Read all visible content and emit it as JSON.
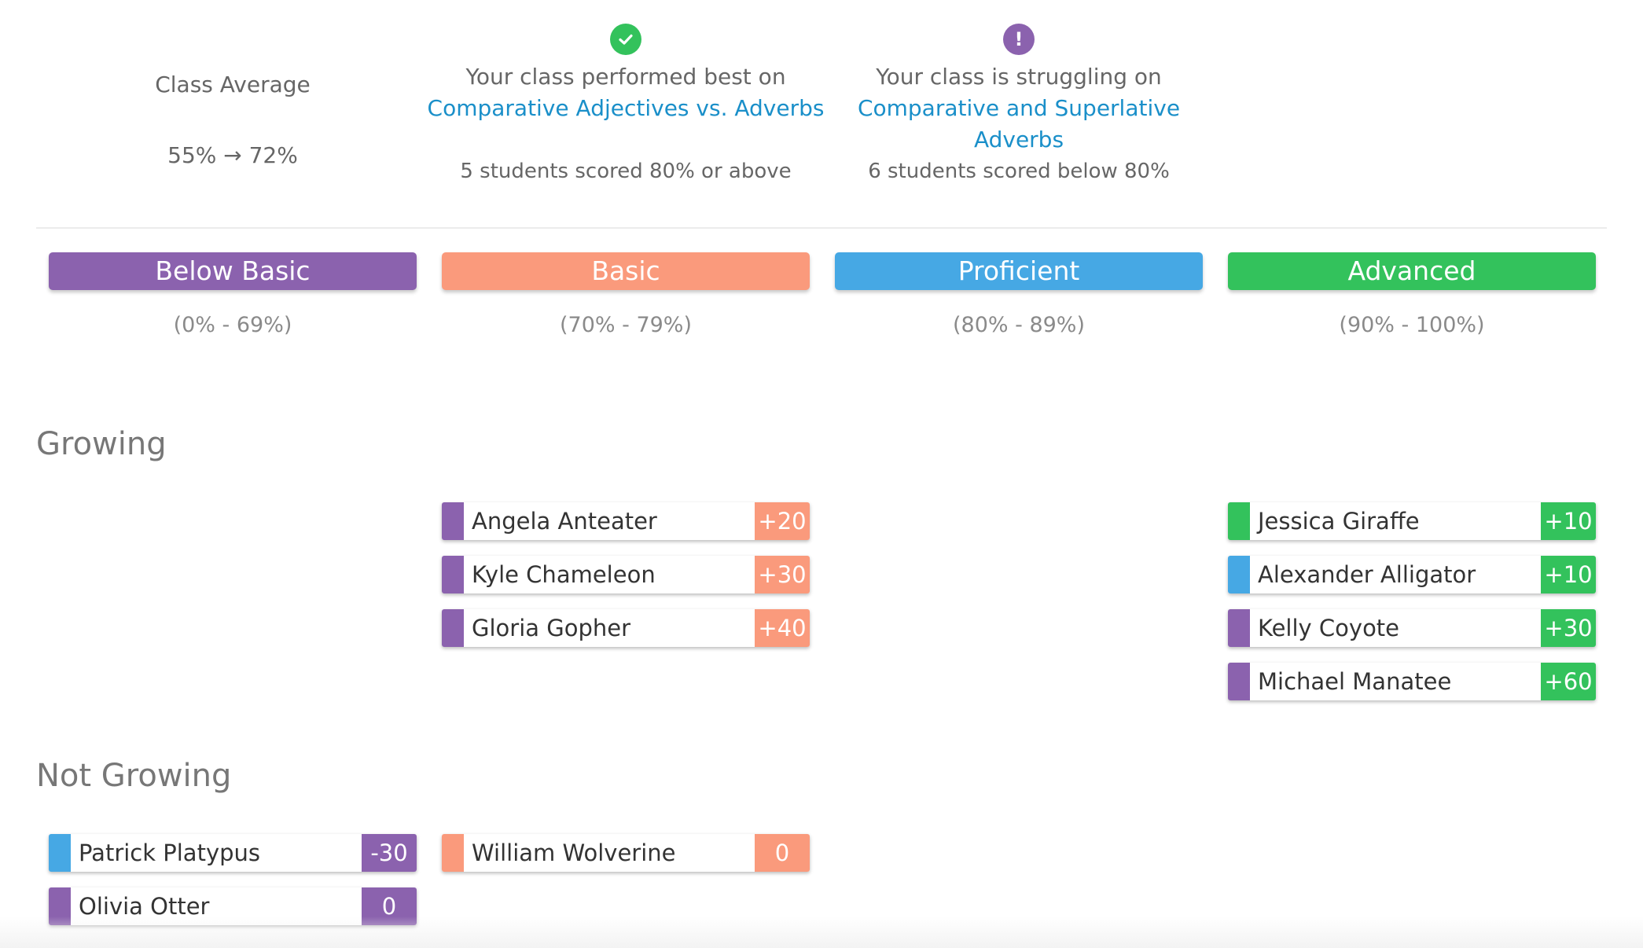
{
  "colors": {
    "below_basic": "#8b62ae",
    "basic": "#fa9a7c",
    "proficient": "#46a8e4",
    "advanced": "#33c25c",
    "link": "#1a8fc9"
  },
  "summary": {
    "class_average": {
      "label": "Class Average",
      "value": "55% → 72%"
    },
    "best": {
      "icon": "check-circle-icon",
      "text": "Your class performed best on",
      "link": "Comparative Adjectives vs. Adverbs",
      "detail": "5 students scored 80% or above"
    },
    "struggling": {
      "icon": "exclamation-circle-icon",
      "text": "Your class is struggling on",
      "link_line1": "Comparative and Superlative",
      "link_line2": "Adverbs",
      "detail": "6 students scored below 80%"
    }
  },
  "levels": [
    {
      "label": "Below Basic",
      "range": "(0% - 69%)"
    },
    {
      "label": "Basic",
      "range": "(70% - 79%)"
    },
    {
      "label": "Proficient",
      "range": "(80% - 89%)"
    },
    {
      "label": "Advanced",
      "range": "(90% - 100%)"
    }
  ],
  "sections": {
    "growing": {
      "title": "Growing",
      "basic": [
        {
          "name": "Angela Anteater",
          "score": "+20",
          "from_level": "below_basic"
        },
        {
          "name": "Kyle Chameleon",
          "score": "+30",
          "from_level": "below_basic"
        },
        {
          "name": "Gloria Gopher",
          "score": "+40",
          "from_level": "below_basic"
        }
      ],
      "advanced": [
        {
          "name": "Jessica Giraffe",
          "score": "+10",
          "from_level": "advanced"
        },
        {
          "name": "Alexander Alligator",
          "score": "+10",
          "from_level": "proficient"
        },
        {
          "name": "Kelly Coyote",
          "score": "+30",
          "from_level": "below_basic"
        },
        {
          "name": "Michael Manatee",
          "score": "+60",
          "from_level": "below_basic"
        }
      ]
    },
    "not_growing": {
      "title": "Not Growing",
      "below_basic": [
        {
          "name": "Patrick Platypus",
          "score": "-30",
          "from_level": "proficient"
        },
        {
          "name": "Olivia Otter",
          "score": "0",
          "from_level": "below_basic"
        }
      ],
      "basic": [
        {
          "name": "William Wolverine",
          "score": "0",
          "from_level": "basic"
        }
      ]
    }
  }
}
